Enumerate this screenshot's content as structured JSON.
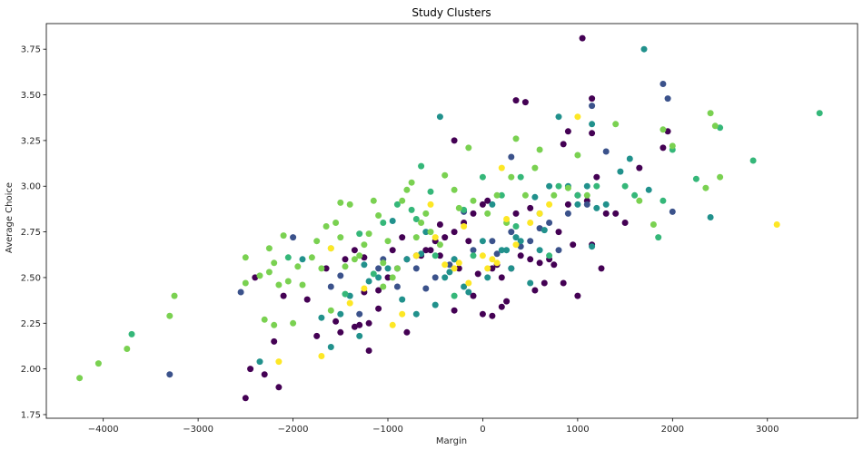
{
  "chart_data": {
    "type": "scatter",
    "title": "Study Clusters",
    "xlabel": "Margin",
    "ylabel": "Average Choice",
    "xlim": [
      -4600,
      3950
    ],
    "ylim": [
      1.73,
      3.89
    ],
    "x_ticks": [
      -4000,
      -3000,
      -2000,
      -1000,
      0,
      1000,
      2000,
      3000
    ],
    "x_tick_labels": [
      "−4000",
      "−3000",
      "−2000",
      "−1000",
      "0",
      "1000",
      "2000",
      "3000"
    ],
    "y_ticks": [
      1.75,
      2.0,
      2.25,
      2.5,
      2.75,
      3.0,
      3.25,
      3.5,
      3.75
    ],
    "y_tick_labels": [
      "1.75",
      "2.00",
      "2.25",
      "2.50",
      "2.75",
      "3.00",
      "3.25",
      "3.50",
      "3.75"
    ],
    "grid": false,
    "legend": "none",
    "series": [
      {
        "color": "#440154",
        "points": [
          [
            1050,
            3.81
          ],
          [
            1150,
            3.48
          ],
          [
            350,
            3.47
          ],
          [
            450,
            3.46
          ],
          [
            900,
            3.3
          ],
          [
            1150,
            3.29
          ],
          [
            -300,
            3.25
          ],
          [
            850,
            3.23
          ],
          [
            1950,
            3.3
          ],
          [
            -2500,
            1.84
          ],
          [
            -2450,
            2.0
          ],
          [
            -2300,
            1.97
          ],
          [
            -2150,
            1.9
          ],
          [
            -1850,
            2.38
          ],
          [
            -1750,
            2.18
          ],
          [
            -1500,
            2.2
          ],
          [
            -1350,
            2.23
          ],
          [
            -1300,
            2.24
          ],
          [
            -1200,
            2.1
          ],
          [
            -1250,
            2.42
          ],
          [
            -1100,
            2.43
          ],
          [
            -1000,
            2.5
          ],
          [
            -900,
            2.55
          ],
          [
            -800,
            2.6
          ],
          [
            -700,
            2.62
          ],
          [
            -600,
            2.65
          ],
          [
            -500,
            2.7
          ],
          [
            -400,
            2.72
          ],
          [
            -300,
            2.75
          ],
          [
            -200,
            2.8
          ],
          [
            -100,
            2.85
          ],
          [
            0,
            2.9
          ],
          [
            100,
            2.55
          ],
          [
            200,
            2.5
          ],
          [
            0,
            2.3
          ],
          [
            100,
            2.29
          ],
          [
            200,
            2.34
          ],
          [
            -100,
            2.4
          ],
          [
            -300,
            2.32
          ],
          [
            300,
            2.55
          ],
          [
            400,
            2.62
          ],
          [
            500,
            2.6
          ],
          [
            600,
            2.58
          ],
          [
            700,
            2.6
          ],
          [
            800,
            2.75
          ],
          [
            900,
            2.9
          ],
          [
            1000,
            2.95
          ],
          [
            1100,
            2.92
          ],
          [
            1200,
            3.05
          ],
          [
            1300,
            2.85
          ],
          [
            1400,
            2.85
          ],
          [
            1500,
            2.8
          ],
          [
            1650,
            3.1
          ],
          [
            1900,
            3.21
          ],
          [
            1000,
            2.4
          ],
          [
            550,
            2.43
          ],
          [
            -1650,
            2.55
          ],
          [
            -1450,
            2.6
          ],
          [
            -1100,
            2.33
          ],
          [
            -1200,
            2.25
          ],
          [
            -1250,
            2.61
          ],
          [
            -2400,
            2.5
          ],
          [
            -2100,
            2.4
          ],
          [
            -2200,
            2.15
          ],
          [
            -800,
            2.2
          ],
          [
            -650,
            2.62
          ],
          [
            -250,
            2.55
          ],
          [
            -50,
            2.52
          ],
          [
            150,
            2.57
          ],
          [
            250,
            2.37
          ],
          [
            350,
            2.85
          ],
          [
            500,
            2.88
          ],
          [
            650,
            2.47
          ],
          [
            750,
            2.57
          ],
          [
            850,
            2.47
          ],
          [
            950,
            2.68
          ],
          [
            1150,
            2.68
          ],
          [
            1250,
            2.55
          ],
          [
            -1550,
            2.26
          ],
          [
            -1350,
            2.65
          ],
          [
            -950,
            2.65
          ],
          [
            -850,
            2.72
          ],
          [
            -550,
            2.65
          ],
          [
            -450,
            2.62
          ],
          [
            -150,
            2.7
          ],
          [
            50,
            2.92
          ],
          [
            -450,
            2.79
          ]
        ]
      },
      {
        "color": "#3b528b",
        "points": [
          [
            -3300,
            1.97
          ],
          [
            -2550,
            2.42
          ],
          [
            -2000,
            2.72
          ],
          [
            -1600,
            2.45
          ],
          [
            -1300,
            2.3
          ],
          [
            -1100,
            2.55
          ],
          [
            -900,
            2.45
          ],
          [
            -700,
            2.55
          ],
          [
            -500,
            2.5
          ],
          [
            -300,
            2.6
          ],
          [
            -100,
            2.65
          ],
          [
            100,
            2.7
          ],
          [
            300,
            2.75
          ],
          [
            500,
            2.7
          ],
          [
            700,
            2.8
          ],
          [
            900,
            2.85
          ],
          [
            1100,
            2.9
          ],
          [
            1300,
            3.19
          ],
          [
            1900,
            3.56
          ],
          [
            1950,
            3.48
          ],
          [
            2000,
            2.86
          ],
          [
            1150,
            3.44
          ],
          [
            300,
            3.16
          ],
          [
            -200,
            2.86
          ],
          [
            400,
            2.67
          ],
          [
            800,
            2.65
          ],
          [
            600,
            2.77
          ],
          [
            -600,
            2.44
          ],
          [
            -1500,
            2.51
          ],
          [
            -1050,
            2.6
          ],
          [
            -350,
            2.57
          ],
          [
            150,
            2.63
          ]
        ]
      },
      {
        "color": "#21918c",
        "points": [
          [
            -2350,
            2.04
          ],
          [
            -1900,
            2.6
          ],
          [
            -1700,
            2.28
          ],
          [
            -1600,
            2.12
          ],
          [
            -1500,
            2.3
          ],
          [
            -1400,
            2.4
          ],
          [
            -1300,
            2.18
          ],
          [
            -1200,
            2.48
          ],
          [
            -1100,
            2.5
          ],
          [
            -1000,
            2.55
          ],
          [
            -950,
            2.81
          ],
          [
            -800,
            2.6
          ],
          [
            -700,
            2.3
          ],
          [
            -600,
            2.75
          ],
          [
            -500,
            2.35
          ],
          [
            -400,
            2.5
          ],
          [
            -300,
            2.6
          ],
          [
            -200,
            2.45
          ],
          [
            0,
            2.7
          ],
          [
            50,
            2.5
          ],
          [
            100,
            2.9
          ],
          [
            200,
            2.65
          ],
          [
            300,
            2.55
          ],
          [
            400,
            2.7
          ],
          [
            500,
            2.47
          ],
          [
            600,
            2.65
          ],
          [
            700,
            3.0
          ],
          [
            800,
            3.38
          ],
          [
            900,
            3.0
          ],
          [
            1000,
            2.9
          ],
          [
            1100,
            3.0
          ],
          [
            1150,
            2.67
          ],
          [
            1200,
            2.88
          ],
          [
            1300,
            2.9
          ],
          [
            1450,
            3.08
          ],
          [
            1550,
            3.15
          ],
          [
            1700,
            3.75
          ],
          [
            1750,
            2.98
          ],
          [
            2400,
            2.83
          ],
          [
            1150,
            3.34
          ],
          [
            -450,
            3.38
          ],
          [
            250,
            2.65
          ],
          [
            550,
            2.94
          ],
          [
            650,
            2.76
          ],
          [
            350,
            2.72
          ],
          [
            -150,
            2.42
          ],
          [
            -850,
            2.38
          ],
          [
            -1250,
            2.57
          ],
          [
            -650,
            2.63
          ],
          [
            -350,
            2.53
          ]
        ]
      },
      {
        "color": "#35b779",
        "points": [
          [
            -3700,
            2.19
          ],
          [
            -2050,
            2.61
          ],
          [
            -1300,
            2.74
          ],
          [
            -1050,
            2.8
          ],
          [
            -900,
            2.9
          ],
          [
            -700,
            2.82
          ],
          [
            -500,
            2.62
          ],
          [
            -300,
            2.4
          ],
          [
            -100,
            2.62
          ],
          [
            0,
            3.05
          ],
          [
            200,
            2.95
          ],
          [
            400,
            3.05
          ],
          [
            600,
            2.85
          ],
          [
            800,
            3.0
          ],
          [
            1000,
            2.95
          ],
          [
            1200,
            3.0
          ],
          [
            1500,
            3.0
          ],
          [
            1600,
            2.95
          ],
          [
            1900,
            2.92
          ],
          [
            2000,
            3.2
          ],
          [
            2250,
            3.04
          ],
          [
            2850,
            3.14
          ],
          [
            3550,
            3.4
          ],
          [
            2500,
            3.32
          ],
          [
            -650,
            3.11
          ],
          [
            -550,
            2.97
          ],
          [
            -200,
            2.87
          ],
          [
            350,
            2.78
          ],
          [
            700,
            2.62
          ],
          [
            -750,
            2.87
          ],
          [
            -1150,
            2.52
          ],
          [
            -1450,
            2.41
          ],
          [
            1850,
            2.72
          ]
        ]
      },
      {
        "color": "#7ad151",
        "points": [
          [
            -4250,
            1.95
          ],
          [
            -4050,
            2.03
          ],
          [
            -3750,
            2.11
          ],
          [
            -3300,
            2.29
          ],
          [
            -3250,
            2.4
          ],
          [
            -2500,
            2.47
          ],
          [
            -2500,
            2.61
          ],
          [
            -2350,
            2.51
          ],
          [
            -2250,
            2.53
          ],
          [
            -2250,
            2.66
          ],
          [
            -2200,
            2.58
          ],
          [
            -2150,
            2.46
          ],
          [
            -2100,
            2.73
          ],
          [
            -2050,
            2.48
          ],
          [
            -2000,
            2.25
          ],
          [
            -1950,
            2.56
          ],
          [
            -1900,
            2.46
          ],
          [
            -1800,
            2.61
          ],
          [
            -1750,
            2.7
          ],
          [
            -1700,
            2.55
          ],
          [
            -1650,
            2.78
          ],
          [
            -1600,
            2.66
          ],
          [
            -1550,
            2.8
          ],
          [
            -1500,
            2.72
          ],
          [
            -1450,
            2.56
          ],
          [
            -1400,
            2.9
          ],
          [
            -1350,
            2.6
          ],
          [
            -1300,
            2.62
          ],
          [
            -1250,
            2.68
          ],
          [
            -1200,
            2.74
          ],
          [
            -1150,
            2.92
          ],
          [
            -1100,
            2.84
          ],
          [
            -1050,
            2.45
          ],
          [
            -1000,
            2.7
          ],
          [
            -950,
            2.5
          ],
          [
            -900,
            2.55
          ],
          [
            -850,
            2.92
          ],
          [
            -800,
            2.98
          ],
          [
            -750,
            3.02
          ],
          [
            -650,
            2.8
          ],
          [
            -600,
            2.85
          ],
          [
            -550,
            2.75
          ],
          [
            -400,
            3.06
          ],
          [
            -300,
            2.98
          ],
          [
            -250,
            2.88
          ],
          [
            -150,
            3.21
          ],
          [
            50,
            2.85
          ],
          [
            150,
            2.95
          ],
          [
            300,
            3.05
          ],
          [
            350,
            3.26
          ],
          [
            450,
            2.95
          ],
          [
            550,
            3.1
          ],
          [
            600,
            3.2
          ],
          [
            750,
            2.95
          ],
          [
            900,
            2.99
          ],
          [
            1000,
            3.17
          ],
          [
            1100,
            2.95
          ],
          [
            1400,
            3.34
          ],
          [
            1650,
            2.92
          ],
          [
            1800,
            2.79
          ],
          [
            1900,
            3.31
          ],
          [
            2000,
            3.22
          ],
          [
            2350,
            2.99
          ],
          [
            2400,
            3.4
          ],
          [
            2450,
            3.33
          ],
          [
            2500,
            3.05
          ],
          [
            -2300,
            2.27
          ],
          [
            -2200,
            2.24
          ],
          [
            -1600,
            2.32
          ],
          [
            -1500,
            2.91
          ],
          [
            -1050,
            2.58
          ],
          [
            -700,
            2.72
          ],
          [
            -450,
            2.68
          ],
          [
            -100,
            2.92
          ],
          [
            250,
            2.8
          ]
        ]
      },
      {
        "color": "#fde725",
        "points": [
          [
            -2150,
            2.04
          ],
          [
            -1700,
            2.07
          ],
          [
            -1400,
            2.36
          ],
          [
            -1250,
            2.44
          ],
          [
            -950,
            2.24
          ],
          [
            -700,
            2.62
          ],
          [
            -550,
            2.9
          ],
          [
            -500,
            2.72
          ],
          [
            -400,
            2.57
          ],
          [
            -300,
            2.55
          ],
          [
            -250,
            2.58
          ],
          [
            -200,
            2.78
          ],
          [
            0,
            2.62
          ],
          [
            100,
            2.6
          ],
          [
            200,
            3.1
          ],
          [
            250,
            2.82
          ],
          [
            500,
            2.8
          ],
          [
            600,
            2.85
          ],
          [
            700,
            2.9
          ],
          [
            1000,
            3.38
          ],
          [
            3100,
            2.79
          ],
          [
            -150,
            2.47
          ],
          [
            150,
            2.58
          ],
          [
            -1600,
            2.66
          ],
          [
            -850,
            2.3
          ],
          [
            50,
            2.55
          ],
          [
            350,
            2.68
          ]
        ]
      }
    ]
  }
}
